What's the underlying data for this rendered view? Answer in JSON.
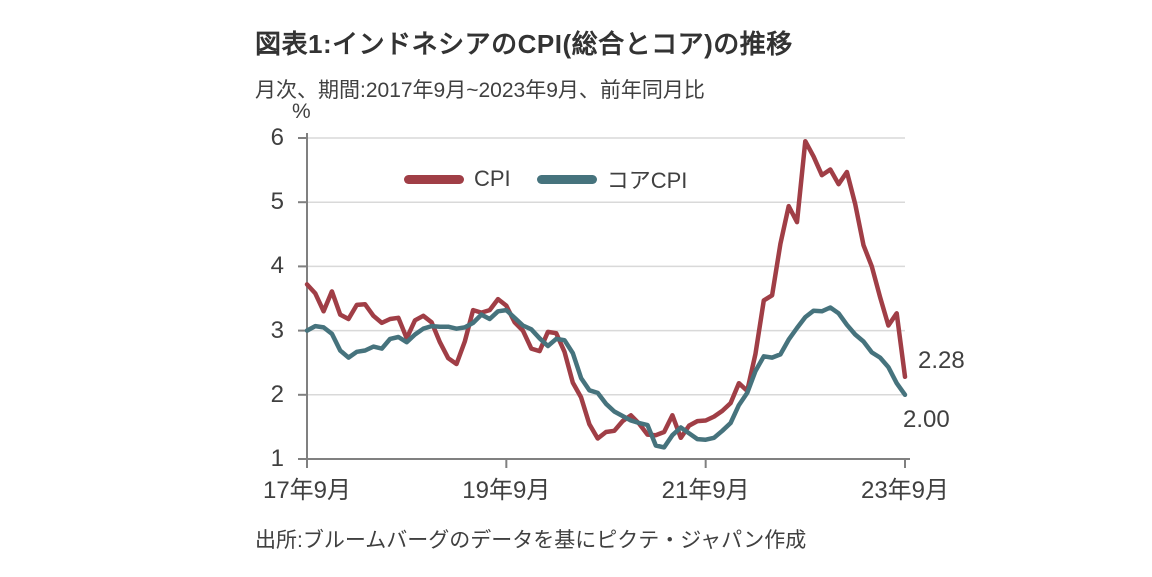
{
  "page": {
    "background": "#ffffff"
  },
  "header": {
    "title": "図表1:インドネシアのCPI(総合とコア)の推移",
    "subtitle": "月次、期間:2017年9月~2023年9月、前年同月比"
  },
  "source_note": "出所:ブルームバーグのデータを基にピクテ・ジャパン作成",
  "colors": {
    "cpi_line": "#A03E46",
    "core_cpi_line": "#46737D",
    "axis": "#808080",
    "gridline": "#D9D9D9",
    "text": "#404040",
    "title_text": "#333333"
  },
  "chart_data": {
    "type": "line",
    "title": "図表1:インドネシアのCPI(総合とコア)の推移",
    "subtitle": "月次、期間:2017年9月~2023年9月、前年同月比",
    "unit_label": "%",
    "grid": true,
    "legend_position": "top-center",
    "ylim": [
      1,
      6
    ],
    "y_ticks": [
      1,
      2,
      3,
      4,
      5,
      6
    ],
    "x_range": {
      "start": "2017-09",
      "end": "2023-09",
      "frequency": "monthly"
    },
    "x_tick_labels": [
      "17年9月",
      "19年9月",
      "21年9月",
      "23年9月"
    ],
    "x_tick_month_index": [
      0,
      24,
      48,
      72
    ],
    "series": [
      {
        "name": "CPI",
        "color": "#A03E46",
        "end_label": "2.28",
        "values": [
          3.72,
          3.58,
          3.3,
          3.61,
          3.25,
          3.18,
          3.4,
          3.41,
          3.23,
          3.12,
          3.18,
          3.2,
          2.88,
          3.16,
          3.23,
          3.13,
          2.82,
          2.57,
          2.48,
          2.83,
          3.32,
          3.28,
          3.32,
          3.49,
          3.39,
          3.13,
          3.0,
          2.72,
          2.68,
          2.98,
          2.96,
          2.67,
          2.19,
          1.96,
          1.54,
          1.32,
          1.42,
          1.44,
          1.59,
          1.68,
          1.55,
          1.38,
          1.37,
          1.42,
          1.68,
          1.33,
          1.52,
          1.59,
          1.6,
          1.66,
          1.75,
          1.87,
          2.18,
          2.06,
          2.64,
          3.47,
          3.55,
          4.35,
          4.94,
          4.69,
          5.95,
          5.71,
          5.42,
          5.51,
          5.28,
          5.47,
          4.97,
          4.33,
          4.0,
          3.52,
          3.08,
          3.27,
          2.28
        ]
      },
      {
        "name": "コアCPI",
        "color": "#46737D",
        "end_label": "2.00",
        "values": [
          3.0,
          3.07,
          3.05,
          2.95,
          2.69,
          2.58,
          2.67,
          2.69,
          2.75,
          2.72,
          2.87,
          2.9,
          2.82,
          2.94,
          3.03,
          3.07,
          3.06,
          3.06,
          3.03,
          3.05,
          3.12,
          3.25,
          3.18,
          3.3,
          3.32,
          3.2,
          3.08,
          3.02,
          2.88,
          2.76,
          2.87,
          2.85,
          2.65,
          2.26,
          2.07,
          2.03,
          1.86,
          1.74,
          1.67,
          1.6,
          1.56,
          1.53,
          1.21,
          1.18,
          1.37,
          1.49,
          1.4,
          1.31,
          1.3,
          1.33,
          1.44,
          1.56,
          1.84,
          2.03,
          2.37,
          2.6,
          2.58,
          2.63,
          2.86,
          3.04,
          3.21,
          3.31,
          3.3,
          3.36,
          3.27,
          3.09,
          2.94,
          2.83,
          2.66,
          2.58,
          2.43,
          2.18,
          2.0
        ]
      }
    ]
  }
}
